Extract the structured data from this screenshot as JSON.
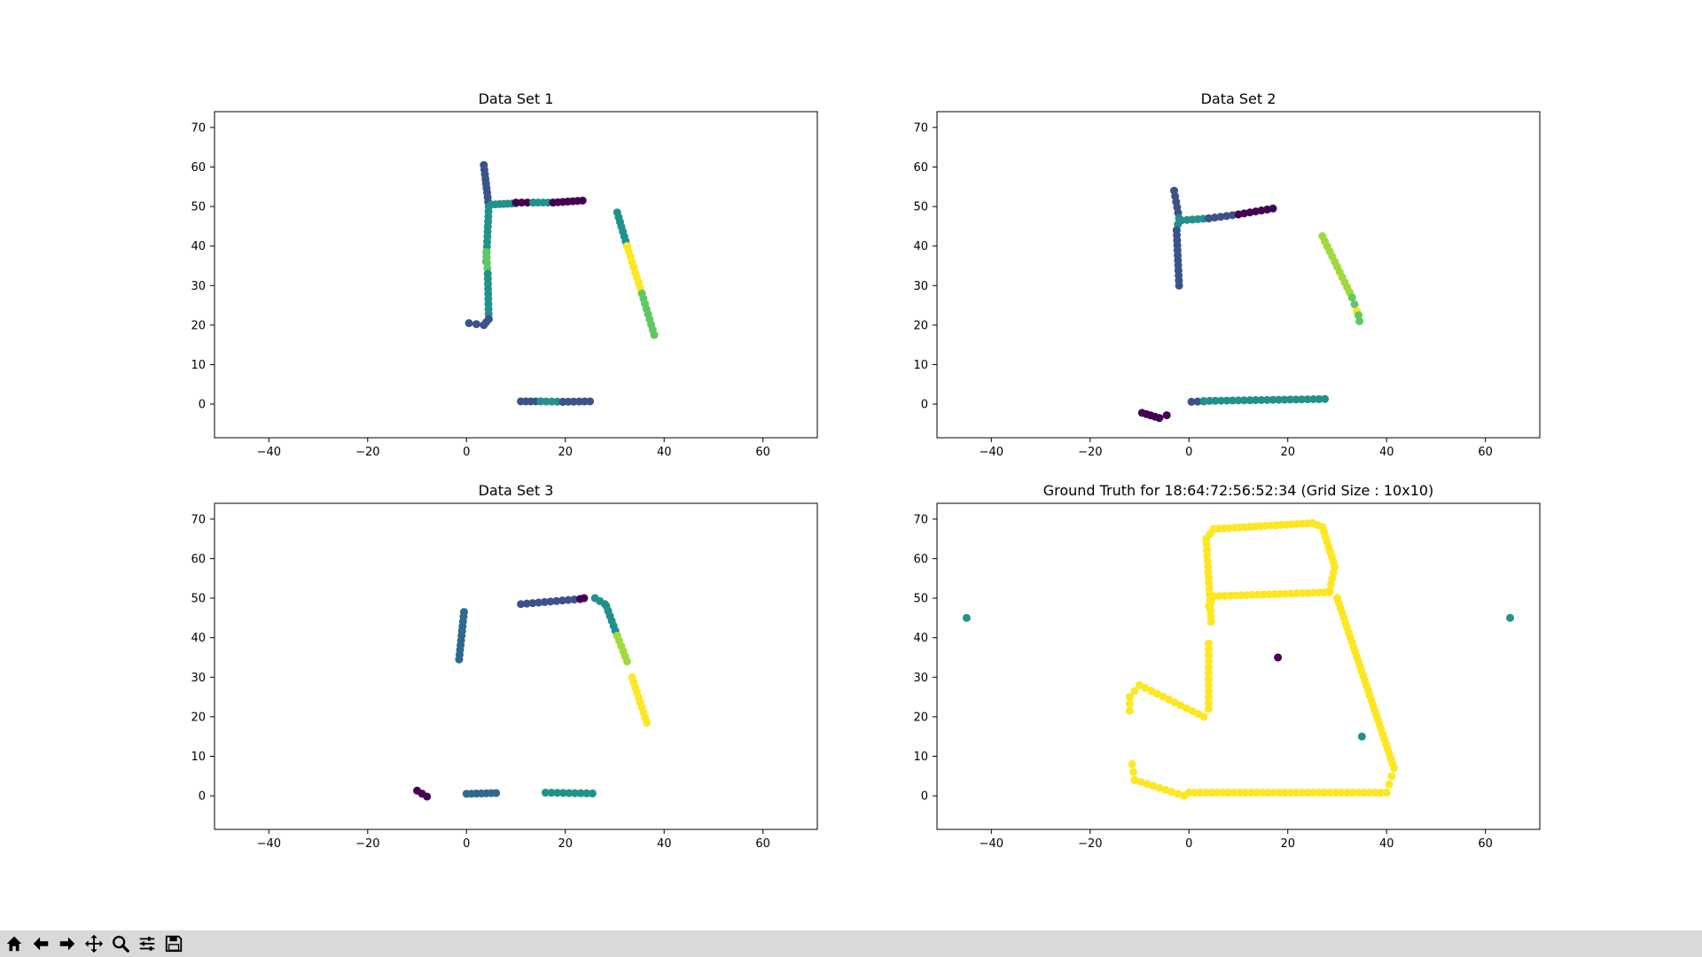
{
  "window": {
    "toolbar_icons": [
      "home-icon",
      "back-icon",
      "forward-icon",
      "pan-icon",
      "zoom-icon",
      "configure-subplots-icon",
      "save-icon"
    ]
  },
  "colors": {
    "viridis_dark": "#440154",
    "viridis_blue": "#3b528b",
    "viridis_teal": "#21918c",
    "viridis_green": "#5ec962",
    "viridis_yellow": "#fde725",
    "toolbar_bg": "#d9d9d9"
  },
  "chart_data": [
    {
      "type": "scatter",
      "title": "Data Set 1",
      "xlim": [
        -51,
        71
      ],
      "ylim": [
        -8.5,
        74
      ],
      "xticks": [
        -40,
        -20,
        0,
        20,
        40,
        60
      ],
      "yticks": [
        0,
        10,
        20,
        30,
        40,
        50,
        60,
        70
      ],
      "segments": [
        {
          "color": "#3b528b",
          "from": [
            3.5,
            60.5
          ],
          "to": [
            4.5,
            50
          ],
          "n": 10
        },
        {
          "color": "#21918c",
          "from": [
            4.5,
            50
          ],
          "to": [
            4,
            36
          ],
          "n": 12
        },
        {
          "color": "#5ec962",
          "from": [
            4,
            38.5
          ],
          "to": [
            4.3,
            33
          ],
          "n": 5
        },
        {
          "color": "#21918c",
          "from": [
            4.3,
            33
          ],
          "to": [
            4.5,
            21.5
          ],
          "n": 10
        },
        {
          "color": "#3b528b",
          "from": [
            4.5,
            21.5
          ],
          "to": [
            3.5,
            20
          ],
          "n": 3
        },
        {
          "color": "#3b528b",
          "from": [
            3.5,
            20
          ],
          "to": [
            0.5,
            20.5
          ],
          "n": 3
        },
        {
          "color": "#21918c",
          "from": [
            5,
            50.5
          ],
          "to": [
            10,
            50.8
          ],
          "n": 7
        },
        {
          "color": "#440154",
          "from": [
            10,
            51
          ],
          "to": [
            13.5,
            51
          ],
          "n": 4
        },
        {
          "color": "#21918c",
          "from": [
            13.5,
            51
          ],
          "to": [
            17.5,
            51
          ],
          "n": 5
        },
        {
          "color": "#440154",
          "from": [
            17.5,
            51
          ],
          "to": [
            23.5,
            51.5
          ],
          "n": 7
        },
        {
          "color": "#21918c",
          "from": [
            30.5,
            48.5
          ],
          "to": [
            32.5,
            40
          ],
          "n": 8
        },
        {
          "color": "#fde725",
          "from": [
            32.5,
            40
          ],
          "to": [
            35.5,
            28
          ],
          "n": 10
        },
        {
          "color": "#5ec962",
          "from": [
            35.5,
            28
          ],
          "to": [
            38,
            17.5
          ],
          "n": 9
        },
        {
          "color": "#3b528b",
          "from": [
            11,
            0.7
          ],
          "to": [
            15,
            0.7
          ],
          "n": 5
        },
        {
          "color": "#21918c",
          "from": [
            15,
            0.7
          ],
          "to": [
            19.5,
            0.6
          ],
          "n": 5
        },
        {
          "color": "#3b528b",
          "from": [
            19.5,
            0.6
          ],
          "to": [
            25,
            0.7
          ],
          "n": 6
        }
      ]
    },
    {
      "type": "scatter",
      "title": "Data Set 2",
      "xlim": [
        -51,
        71
      ],
      "ylim": [
        -8.5,
        74
      ],
      "xticks": [
        -40,
        -20,
        0,
        20,
        40,
        60
      ],
      "yticks": [
        0,
        10,
        20,
        30,
        40,
        50,
        60,
        70
      ],
      "segments": [
        {
          "color": "#3b528b",
          "from": [
            -3,
            54
          ],
          "to": [
            -2,
            47
          ],
          "n": 6
        },
        {
          "color": "#21918c",
          "from": [
            -2,
            47
          ],
          "to": [
            -2.5,
            44
          ],
          "n": 3
        },
        {
          "color": "#3b528b",
          "from": [
            -2.5,
            44
          ],
          "to": [
            -2,
            30
          ],
          "n": 12
        },
        {
          "color": "#21918c",
          "from": [
            -1.5,
            46.5
          ],
          "to": [
            4,
            47
          ],
          "n": 6
        },
        {
          "color": "#3b528b",
          "from": [
            4,
            47
          ],
          "to": [
            10,
            48
          ],
          "n": 6
        },
        {
          "color": "#440154",
          "from": [
            10,
            48
          ],
          "to": [
            17,
            49.5
          ],
          "n": 7
        },
        {
          "color": "#9fda3a",
          "from": [
            27,
            42.5
          ],
          "to": [
            33,
            27
          ],
          "n": 13
        },
        {
          "color": "#5ec962",
          "from": [
            33,
            27
          ],
          "to": [
            34,
            23.5
          ],
          "n": 3
        },
        {
          "color": "#fde725",
          "from": [
            34,
            23.5
          ],
          "to": [
            34.3,
            22.5
          ],
          "n": 2
        },
        {
          "color": "#5ec962",
          "from": [
            34.3,
            22.5
          ],
          "to": [
            34.5,
            21
          ],
          "n": 2
        },
        {
          "color": "#440154",
          "from": [
            -9.5,
            -2.2
          ],
          "to": [
            -6,
            -3.5
          ],
          "n": 5
        },
        {
          "color": "#440154",
          "from": [
            -6,
            -3.5
          ],
          "to": [
            -4.5,
            -2.8
          ],
          "n": 2
        },
        {
          "color": "#3b528b",
          "from": [
            0.5,
            0.6
          ],
          "to": [
            3,
            0.7
          ],
          "n": 3
        },
        {
          "color": "#21918c",
          "from": [
            3,
            0.8
          ],
          "to": [
            27.5,
            1.3
          ],
          "n": 22
        }
      ]
    },
    {
      "type": "scatter",
      "title": "Data Set 3",
      "xlim": [
        -51,
        71
      ],
      "ylim": [
        -8.5,
        74
      ],
      "xticks": [
        -40,
        -20,
        0,
        20,
        40,
        60
      ],
      "yticks": [
        0,
        10,
        20,
        30,
        40,
        50,
        60,
        70
      ],
      "segments": [
        {
          "color": "#31688e",
          "from": [
            -0.5,
            46.5
          ],
          "to": [
            -1.5,
            34.5
          ],
          "n": 11
        },
        {
          "color": "#3b528b",
          "from": [
            11,
            48.5
          ],
          "to": [
            23,
            49.8
          ],
          "n": 11
        },
        {
          "color": "#440154",
          "from": [
            23,
            49.8
          ],
          "to": [
            23.8,
            50
          ],
          "n": 2
        },
        {
          "color": "#21918c",
          "from": [
            26,
            50
          ],
          "to": [
            28,
            48.5
          ],
          "n": 3
        },
        {
          "color": "#21918c",
          "from": [
            28.3,
            48
          ],
          "to": [
            30.5,
            40.5
          ],
          "n": 7
        },
        {
          "color": "#9fda3a",
          "from": [
            30.5,
            40.5
          ],
          "to": [
            32.5,
            34
          ],
          "n": 6
        },
        {
          "color": "#fde725",
          "from": [
            33.5,
            30
          ],
          "to": [
            36.5,
            18.5
          ],
          "n": 10
        },
        {
          "color": "#440154",
          "from": [
            -10,
            1.3
          ],
          "to": [
            -8,
            -0.2
          ],
          "n": 3
        },
        {
          "color": "#31688e",
          "from": [
            0,
            0.5
          ],
          "to": [
            6,
            0.7
          ],
          "n": 7
        },
        {
          "color": "#21918c",
          "from": [
            16,
            0.8
          ],
          "to": [
            25.5,
            0.6
          ],
          "n": 9
        }
      ]
    },
    {
      "type": "scatter",
      "title": "Ground Truth for 18:64:72:56:52:34 (Grid Size : 10x10)",
      "xlim": [
        -51,
        71
      ],
      "ylim": [
        -8.5,
        74
      ],
      "xticks": [
        -40,
        -20,
        0,
        20,
        40,
        60
      ],
      "yticks": [
        0,
        10,
        20,
        30,
        40,
        50,
        60,
        70
      ],
      "segments": [
        {
          "color": "#fde725",
          "from": [
            3.5,
            65
          ],
          "to": [
            4.5,
            44
          ],
          "n": 16
        },
        {
          "color": "#fde725",
          "from": [
            3.5,
            65
          ],
          "to": [
            5,
            67.5
          ],
          "n": 3
        },
        {
          "color": "#fde725",
          "from": [
            5,
            67.5
          ],
          "to": [
            25,
            69
          ],
          "n": 20
        },
        {
          "color": "#fde725",
          "from": [
            25,
            69
          ],
          "to": [
            27,
            68
          ],
          "n": 3
        },
        {
          "color": "#fde725",
          "from": [
            27,
            68
          ],
          "to": [
            29.5,
            58
          ],
          "n": 9
        },
        {
          "color": "#fde725",
          "from": [
            29.5,
            58
          ],
          "to": [
            28.5,
            52
          ],
          "n": 5
        },
        {
          "color": "#fde725",
          "from": [
            5,
            50.5
          ],
          "to": [
            28.5,
            51.5
          ],
          "n": 22
        },
        {
          "color": "#fde725",
          "from": [
            5,
            50.5
          ],
          "to": [
            4,
            48
          ],
          "n": 3
        },
        {
          "color": "#fde725",
          "from": [
            28.5,
            51.5
          ],
          "to": [
            30,
            50
          ],
          "n": 2
        },
        {
          "color": "#fde725",
          "from": [
            30,
            50
          ],
          "to": [
            41.5,
            7
          ],
          "n": 36
        },
        {
          "color": "#fde725",
          "from": [
            41.5,
            7
          ],
          "to": [
            40,
            0.8
          ],
          "n": 4
        },
        {
          "color": "#fde725",
          "from": [
            40,
            0.8
          ],
          "to": [
            0,
            0.8
          ],
          "n": 36
        },
        {
          "color": "#fde725",
          "from": [
            0,
            0.8
          ],
          "to": [
            -1,
            0
          ],
          "n": 2
        },
        {
          "color": "#fde725",
          "from": [
            -1,
            0
          ],
          "to": [
            -11,
            4
          ],
          "n": 9
        },
        {
          "color": "#fde725",
          "from": [
            -11,
            4
          ],
          "to": [
            -11.5,
            8
          ],
          "n": 3
        },
        {
          "color": "#fde725",
          "from": [
            4,
            38.5
          ],
          "to": [
            4,
            22
          ],
          "n": 12
        },
        {
          "color": "#fde725",
          "from": [
            4,
            22
          ],
          "to": [
            3,
            20
          ],
          "n": 2
        },
        {
          "color": "#fde725",
          "from": [
            3,
            20
          ],
          "to": [
            -10,
            28
          ],
          "n": 12
        },
        {
          "color": "#fde725",
          "from": [
            -10,
            28
          ],
          "to": [
            -12,
            25
          ],
          "n": 3
        },
        {
          "color": "#fde725",
          "from": [
            -12,
            25
          ],
          "to": [
            -12,
            21.5
          ],
          "n": 3
        }
      ],
      "points": [
        {
          "x": -45,
          "y": 45,
          "color": "#21918c"
        },
        {
          "x": 65,
          "y": 45,
          "color": "#21918c"
        },
        {
          "x": 18,
          "y": 35,
          "color": "#440154"
        },
        {
          "x": 35,
          "y": 15,
          "color": "#21918c"
        }
      ]
    }
  ]
}
